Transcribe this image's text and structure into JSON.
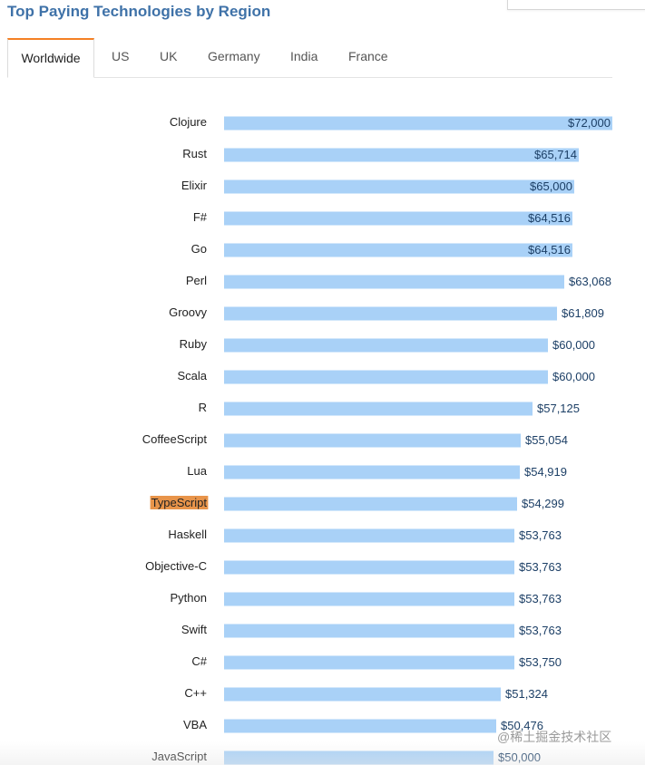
{
  "title": "Top Paying Technologies by Region",
  "tabs": [
    {
      "label": "Worldwide",
      "active": true
    },
    {
      "label": "US",
      "active": false
    },
    {
      "label": "UK",
      "active": false
    },
    {
      "label": "Germany",
      "active": false
    },
    {
      "label": "India",
      "active": false
    },
    {
      "label": "France",
      "active": false
    }
  ],
  "colors": {
    "title": "#3f72a8",
    "bar": "#a9d1f7",
    "highlight": "#e8944a",
    "active_tab_accent": "#f48024",
    "value_text": "#1c3f66"
  },
  "watermark": "@稀土掘金技术社区",
  "chart_data": {
    "type": "bar",
    "orientation": "horizontal",
    "value_format": "$#,###",
    "highlighted_category": "TypeScript",
    "xlim": [
      0,
      72000
    ],
    "grid": false,
    "categories": [
      "Clojure",
      "Rust",
      "Elixir",
      "F#",
      "Go",
      "Perl",
      "Groovy",
      "Ruby",
      "Scala",
      "R",
      "CoffeeScript",
      "Lua",
      "TypeScript",
      "Haskell",
      "Objective-C",
      "Python",
      "Swift",
      "C#",
      "C++",
      "VBA",
      "JavaScript"
    ],
    "values": [
      72000,
      65714,
      65000,
      64516,
      64516,
      63068,
      61809,
      60000,
      60000,
      57125,
      55054,
      54919,
      54299,
      53763,
      53763,
      53763,
      53763,
      53750,
      51324,
      50476,
      50000
    ],
    "value_labels": [
      "$72,000",
      "$65,714",
      "$65,000",
      "$64,516",
      "$64,516",
      "$63,068",
      "$61,809",
      "$60,000",
      "$60,000",
      "$57,125",
      "$55,054",
      "$54,919",
      "$54,299",
      "$53,763",
      "$53,763",
      "$53,763",
      "$53,763",
      "$53,750",
      "$51,324",
      "$50,476",
      "$50,000"
    ]
  }
}
